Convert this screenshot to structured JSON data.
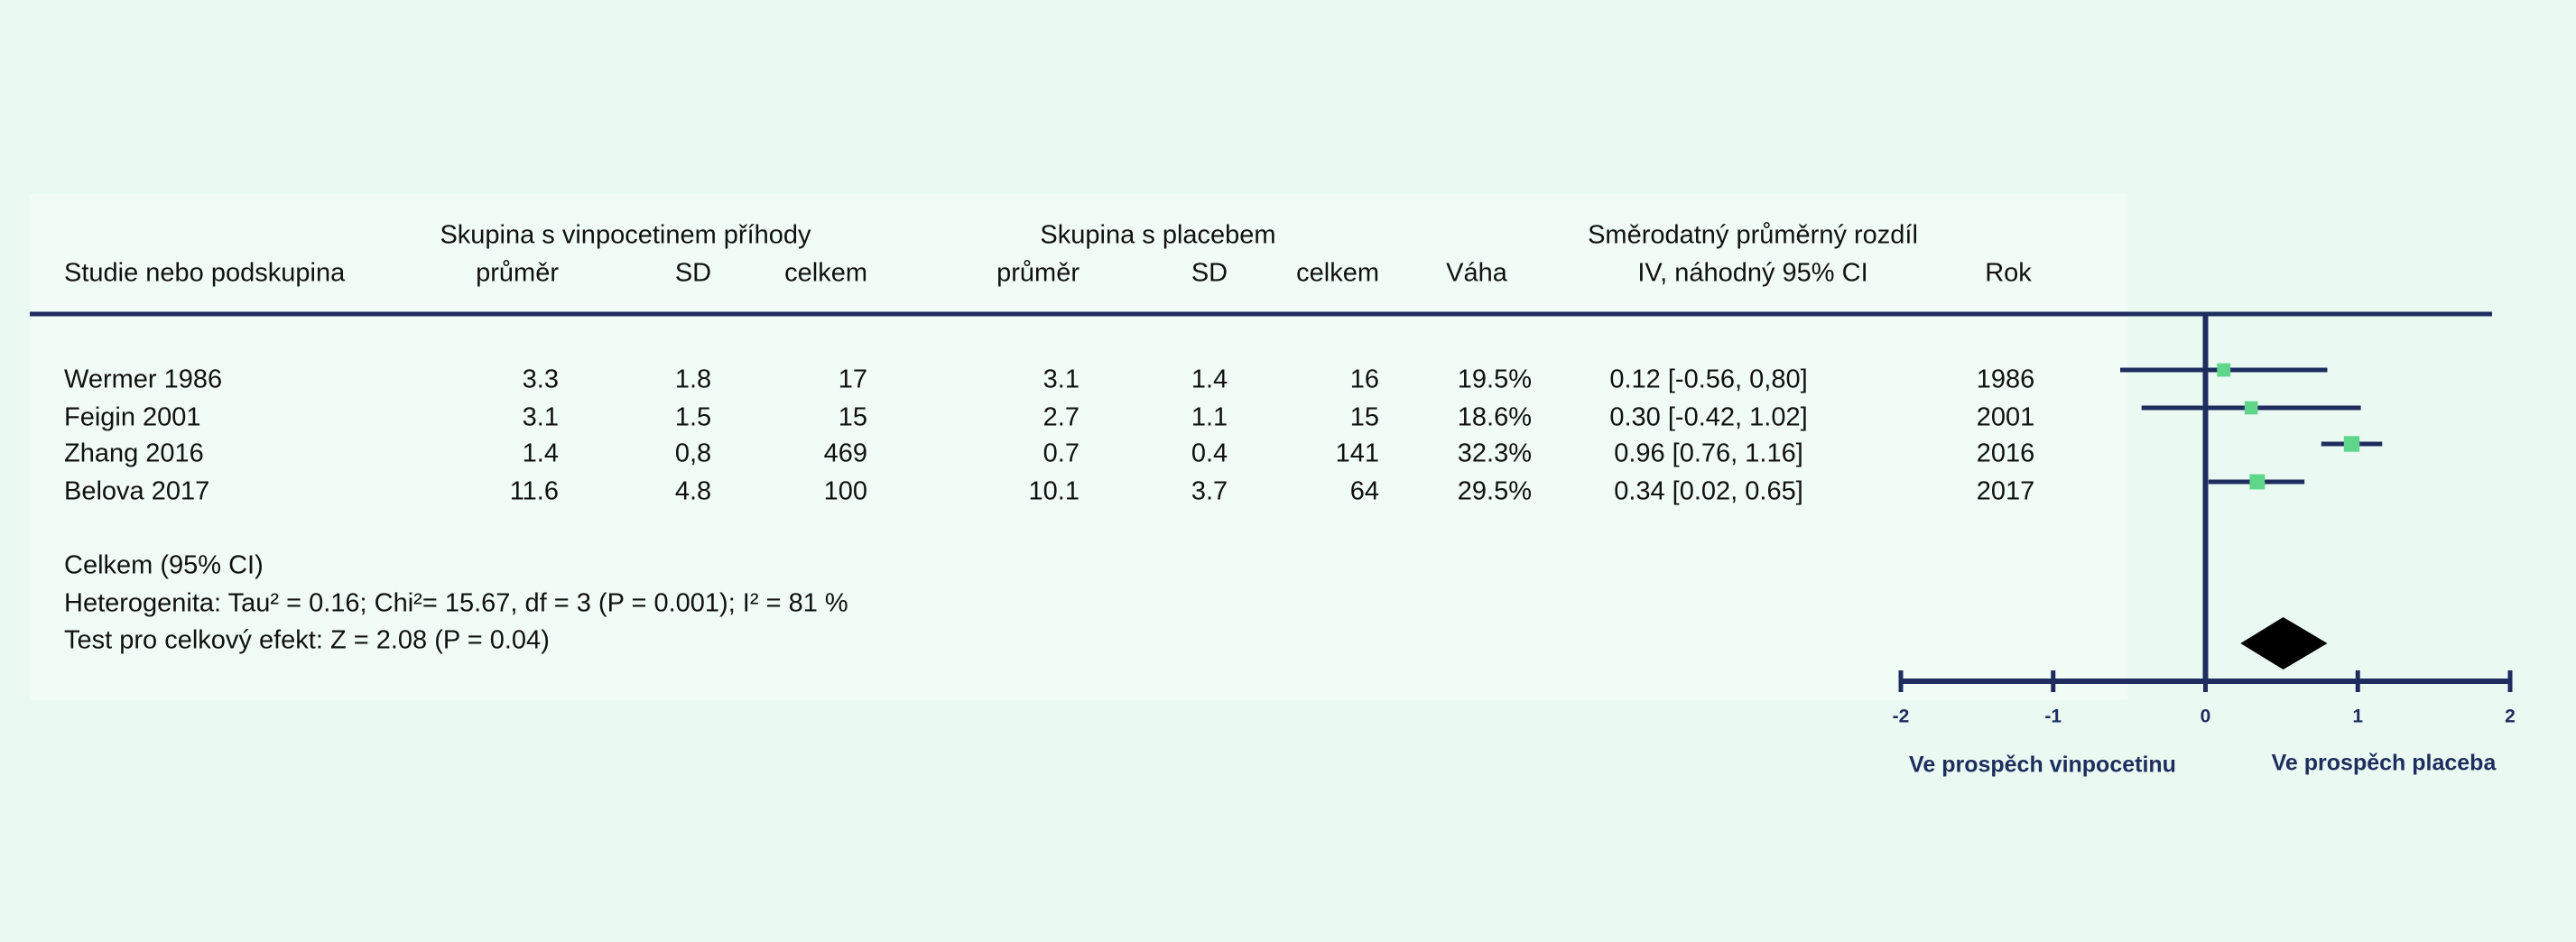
{
  "chart_data": {
    "type": "forest",
    "group_headers": [
      "Skupina s vinpocetinem příhody",
      "Skupina s placebem",
      "Směrodatný průměrný rozdíl"
    ],
    "columns": [
      "Studie nebo podskupina",
      "průměr",
      "SD",
      "celkem",
      "průměr",
      "SD",
      "celkem",
      "Váha",
      "IV, náhodný 95% CI",
      "Rok"
    ],
    "rows": [
      [
        "Wermer 1986",
        "3.3",
        "1.8",
        "17",
        "3.1",
        "1.4",
        "16",
        "19.5%",
        "0.12 [-0.56, 0,80]",
        "1986"
      ],
      [
        "Feigin 2001",
        "3.1",
        "1.5",
        "15",
        "2.7",
        "1.1",
        "15",
        "18.6%",
        "0.30 [-0.42, 1.02]",
        "2001"
      ],
      [
        "Zhang 2016",
        "1.4",
        "0,8",
        "469",
        "0.7",
        "0.4",
        "141",
        "32.3%",
        "0.96 [0.76, 1.16]",
        "2016"
      ],
      [
        "Belova 2017",
        "11.6",
        "4.8",
        "100",
        "10.1",
        "3.7",
        "64",
        "29.5%",
        "0.34 [0.02, 0.65]",
        "2017"
      ]
    ],
    "values": [
      0.12,
      0.3,
      0.96,
      0.34
    ],
    "ci_low": [
      -0.56,
      -0.42,
      0.76,
      0.02
    ],
    "ci_high": [
      0.8,
      1.02,
      1.16,
      0.65
    ],
    "weights": [
      19.5,
      18.6,
      32.3,
      29.5
    ],
    "overall_value": 0.51,
    "overall_ci": [
      0.23,
      0.8
    ],
    "totals_label": "Celkem (95% CI)",
    "heterogeneity": "Heterogenita: Tau² = 0.16; Chi²= 15.67, df = 3 (P = 0.001); I² = 81 %",
    "overall_test": "Test pro celkový efekt: Z = 2.08 (P = 0.04)",
    "xlim": [
      -2,
      2
    ],
    "xticks": [
      -2,
      -1,
      0,
      1,
      2
    ],
    "favours_left": "Ve prospěch vinpocetinu",
    "favours_right": "Ve prospěch placeba",
    "line_color": "#1f2d5e",
    "marker_color": "#5fd68a",
    "diamond_color": "#000000"
  }
}
